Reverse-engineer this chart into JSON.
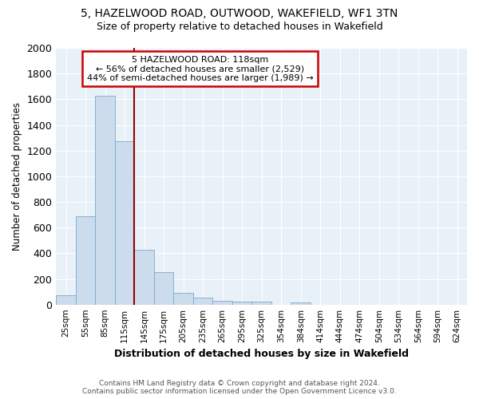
{
  "title1": "5, HAZELWOOD ROAD, OUTWOOD, WAKEFIELD, WF1 3TN",
  "title2": "Size of property relative to detached houses in Wakefield",
  "xlabel": "Distribution of detached houses by size in Wakefield",
  "ylabel": "Number of detached properties",
  "bar_labels": [
    "25sqm",
    "55sqm",
    "85sqm",
    "115sqm",
    "145sqm",
    "175sqm",
    "205sqm",
    "235sqm",
    "265sqm",
    "295sqm",
    "325sqm",
    "354sqm",
    "384sqm",
    "414sqm",
    "444sqm",
    "474sqm",
    "504sqm",
    "534sqm",
    "564sqm",
    "594sqm",
    "624sqm"
  ],
  "bar_values": [
    70,
    690,
    1630,
    1270,
    430,
    255,
    90,
    55,
    30,
    25,
    20,
    0,
    15,
    0,
    0,
    0,
    0,
    0,
    0,
    0,
    0
  ],
  "bar_color": "#ccdcec",
  "bar_edge_color": "#7aaac8",
  "property_label": "5 HAZELWOOD ROAD: 118sqm",
  "annotation_line1": "← 56% of detached houses are smaller (2,529)",
  "annotation_line2": "44% of semi-detached houses are larger (1,989) →",
  "annotation_box_color": "#ffffff",
  "annotation_box_edge": "#cc0000",
  "vline_color": "#990000",
  "ylim": [
    0,
    2000
  ],
  "yticks": [
    0,
    200,
    400,
    600,
    800,
    1000,
    1200,
    1400,
    1600,
    1800,
    2000
  ],
  "footnote1": "Contains HM Land Registry data © Crown copyright and database right 2024.",
  "footnote2": "Contains public sector information licensed under the Open Government Licence v3.0.",
  "bg_color": "#e8f0f8",
  "grid_color": "#ffffff"
}
